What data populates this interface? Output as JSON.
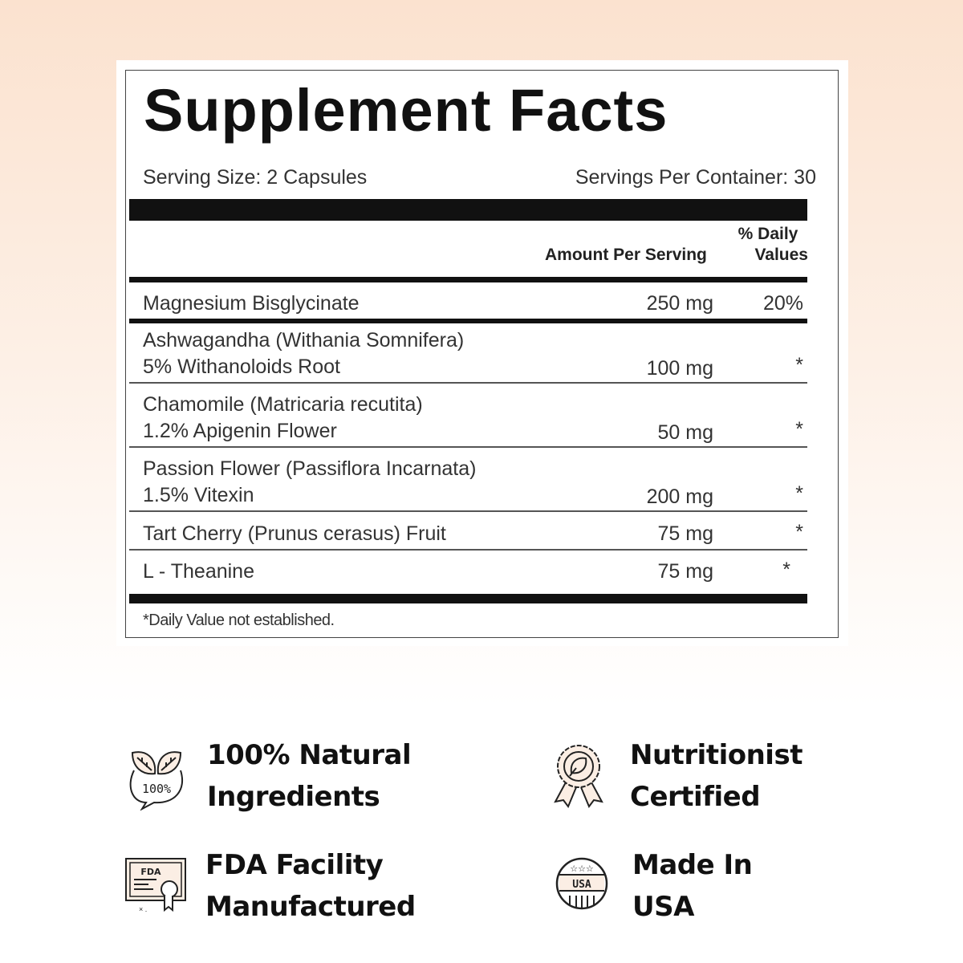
{
  "label": {
    "title": "Supplement Facts",
    "serving_size": "Serving Size: 2 Capsules",
    "servings_per_container": "Servings Per Container: 30",
    "col_amount": "Amount Per Serving",
    "col_dv_1": "% Daily",
    "col_dv_2": "Values",
    "rows": [
      {
        "line1": "Magnesium Bisglycinate",
        "line2": "",
        "amount": "250 mg",
        "dv": "20%"
      },
      {
        "line1": "Ashwagandha (Withania Somnifera)",
        "line2": "5% Withanoloids Root",
        "amount": "100 mg",
        "dv": "*"
      },
      {
        "line1": "Chamomile (Matricaria recutita)",
        "line2": "1.2% Apigenin Flower",
        "amount": "50 mg",
        "dv": "*"
      },
      {
        "line1": "Passion Flower (Passiflora Incarnata)",
        "line2": "1.5% Vitexin",
        "amount": "200 mg",
        "dv": "*"
      },
      {
        "line1": "Tart Cherry (Prunus cerasus) Fruit",
        "line2": "",
        "amount": "75 mg",
        "dv": "*"
      },
      {
        "line1": "L - Theanine",
        "line2": "",
        "amount": "75 mg",
        "dv": "*"
      }
    ],
    "footnote": "*Daily Value not established."
  },
  "features": [
    {
      "icon": "leaf-100-percent-icon",
      "icon_text": "100%",
      "line1": "100% Natural",
      "line2": "Ingredients"
    },
    {
      "icon": "award-ribbon-leaf-icon",
      "line1": "Nutritionist",
      "line2": "Certified"
    },
    {
      "icon": "fda-certificate-icon",
      "icon_text": "FDA",
      "line1": "FDA Facility",
      "line2": "Manufactured"
    },
    {
      "icon": "usa-badge-icon",
      "icon_text": "USA",
      "line1": "Made In",
      "line2": "USA"
    }
  ]
}
